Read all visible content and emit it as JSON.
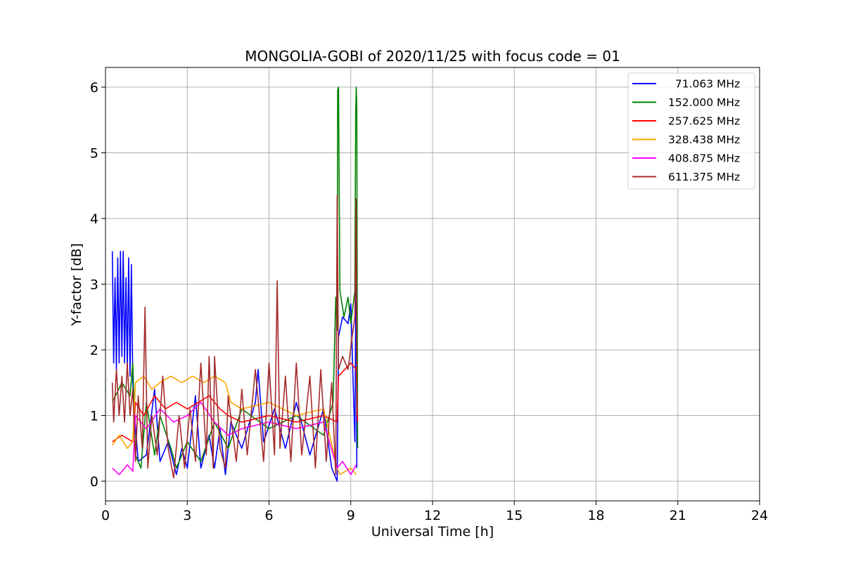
{
  "chart_data": {
    "type": "line",
    "title": "MONGOLIA-GOBI of 2020/11/25 with focus code = 01",
    "xlabel": "Universal Time [h]",
    "ylabel": "Y-factor [dB]",
    "xlim": [
      0,
      24
    ],
    "ylim": [
      -0.3,
      6.3
    ],
    "xticks": [
      0,
      3,
      6,
      9,
      12,
      15,
      18,
      21,
      24
    ],
    "yticks": [
      0,
      1,
      2,
      3,
      4,
      5,
      6
    ],
    "grid": true,
    "legend_position": "top-right",
    "series": [
      {
        "name": "  71.063 MHz",
        "color": "#0000ff",
        "points": [
          [
            0.25,
            3.5
          ],
          [
            0.3,
            1.8
          ],
          [
            0.35,
            3.1
          ],
          [
            0.4,
            1.7
          ],
          [
            0.45,
            3.4
          ],
          [
            0.5,
            1.8
          ],
          [
            0.55,
            3.5
          ],
          [
            0.6,
            1.9
          ],
          [
            0.65,
            3.5
          ],
          [
            0.7,
            1.8
          ],
          [
            0.75,
            3.1
          ],
          [
            0.8,
            1.7
          ],
          [
            0.85,
            3.4
          ],
          [
            0.9,
            1.6
          ],
          [
            0.95,
            3.3
          ],
          [
            1.0,
            1.5
          ],
          [
            1.05,
            1.1
          ],
          [
            1.2,
            0.3
          ],
          [
            1.5,
            0.4
          ],
          [
            1.8,
            1.4
          ],
          [
            2.0,
            0.3
          ],
          [
            2.3,
            0.6
          ],
          [
            2.6,
            0.1
          ],
          [
            2.8,
            0.5
          ],
          [
            3.0,
            0.2
          ],
          [
            3.3,
            1.3
          ],
          [
            3.5,
            0.2
          ],
          [
            3.8,
            0.7
          ],
          [
            4.0,
            0.2
          ],
          [
            4.2,
            0.8
          ],
          [
            4.4,
            0.1
          ],
          [
            4.6,
            0.9
          ],
          [
            5.0,
            0.5
          ],
          [
            5.5,
            1.2
          ],
          [
            5.6,
            1.7
          ],
          [
            5.8,
            0.6
          ],
          [
            6.2,
            1.1
          ],
          [
            6.6,
            0.5
          ],
          [
            7.0,
            1.2
          ],
          [
            7.5,
            0.4
          ],
          [
            8.0,
            1.1
          ],
          [
            8.3,
            0.2
          ],
          [
            8.5,
            0.0
          ],
          [
            8.55,
            2.2
          ],
          [
            8.7,
            2.5
          ],
          [
            8.9,
            2.4
          ],
          [
            9.0,
            2.7
          ],
          [
            9.15,
            0.6
          ],
          [
            9.2,
            4.05
          ],
          [
            9.22,
            0.2
          ]
        ]
      },
      {
        "name": "152.000 MHz",
        "color": "#008000",
        "points": [
          [
            0.25,
            1.2
          ],
          [
            0.6,
            1.5
          ],
          [
            0.9,
            1.3
          ],
          [
            1.0,
            1.8
          ],
          [
            1.1,
            0.4
          ],
          [
            1.3,
            0.2
          ],
          [
            1.5,
            1.2
          ],
          [
            1.8,
            0.4
          ],
          [
            2.0,
            1.0
          ],
          [
            2.4,
            0.5
          ],
          [
            2.6,
            0.2
          ],
          [
            3.0,
            0.6
          ],
          [
            3.5,
            0.3
          ],
          [
            4.0,
            0.9
          ],
          [
            4.5,
            0.5
          ],
          [
            5.0,
            1.1
          ],
          [
            6.0,
            0.8
          ],
          [
            7.0,
            1.0
          ],
          [
            8.0,
            0.7
          ],
          [
            8.35,
            1.2
          ],
          [
            8.45,
            2.8
          ],
          [
            8.5,
            2.3
          ],
          [
            8.52,
            5.95
          ],
          [
            8.55,
            6.0
          ],
          [
            8.6,
            2.9
          ],
          [
            8.75,
            2.5
          ],
          [
            8.9,
            2.8
          ],
          [
            9.0,
            2.4
          ],
          [
            9.15,
            2.9
          ],
          [
            9.18,
            5.6
          ],
          [
            9.2,
            6.0
          ],
          [
            9.22,
            5.7
          ],
          [
            9.25,
            0.5
          ]
        ]
      },
      {
        "name": "257.625 MHz",
        "color": "#ff0000",
        "points": [
          [
            0.25,
            0.6
          ],
          [
            0.6,
            0.7
          ],
          [
            1.0,
            0.6
          ],
          [
            1.1,
            1.2
          ],
          [
            1.4,
            1.0
          ],
          [
            1.8,
            1.3
          ],
          [
            2.2,
            1.1
          ],
          [
            2.6,
            1.2
          ],
          [
            3.0,
            1.1
          ],
          [
            3.4,
            1.2
          ],
          [
            3.8,
            1.3
          ],
          [
            4.2,
            1.1
          ],
          [
            4.5,
            1.0
          ],
          [
            5.0,
            0.9
          ],
          [
            6.0,
            1.0
          ],
          [
            7.0,
            0.9
          ],
          [
            8.0,
            1.0
          ],
          [
            8.5,
            0.9
          ],
          [
            8.55,
            1.6
          ],
          [
            9.0,
            1.8
          ],
          [
            9.2,
            1.7
          ],
          [
            9.25,
            0.9
          ]
        ]
      },
      {
        "name": "328.438 MHz",
        "color": "#ffa500",
        "points": [
          [
            0.25,
            0.55
          ],
          [
            0.5,
            0.7
          ],
          [
            0.8,
            0.5
          ],
          [
            1.0,
            0.6
          ],
          [
            1.1,
            1.5
          ],
          [
            1.4,
            1.6
          ],
          [
            1.7,
            1.4
          ],
          [
            2.0,
            1.5
          ],
          [
            2.4,
            1.6
          ],
          [
            2.8,
            1.5
          ],
          [
            3.2,
            1.6
          ],
          [
            3.6,
            1.5
          ],
          [
            4.0,
            1.6
          ],
          [
            4.4,
            1.5
          ],
          [
            4.6,
            1.2
          ],
          [
            5.0,
            1.1
          ],
          [
            6.0,
            1.2
          ],
          [
            7.0,
            1.0
          ],
          [
            8.0,
            1.1
          ],
          [
            8.5,
            0.2
          ],
          [
            8.6,
            0.1
          ],
          [
            9.0,
            0.2
          ],
          [
            9.2,
            0.1
          ]
        ]
      },
      {
        "name": "408.875 MHz",
        "color": "#ff00ff",
        "points": [
          [
            0.25,
            0.2
          ],
          [
            0.5,
            0.1
          ],
          [
            0.8,
            0.25
          ],
          [
            1.0,
            0.15
          ],
          [
            1.1,
            1.0
          ],
          [
            1.5,
            0.8
          ],
          [
            2.0,
            1.1
          ],
          [
            2.5,
            0.9
          ],
          [
            3.0,
            1.0
          ],
          [
            3.5,
            1.2
          ],
          [
            4.0,
            0.9
          ],
          [
            4.5,
            0.7
          ],
          [
            5.0,
            0.8
          ],
          [
            6.0,
            0.9
          ],
          [
            7.0,
            0.8
          ],
          [
            8.0,
            0.9
          ],
          [
            8.5,
            0.2
          ],
          [
            8.7,
            0.3
          ],
          [
            9.0,
            0.1
          ],
          [
            9.2,
            0.25
          ]
        ]
      },
      {
        "name": "611.375 MHz",
        "color": "#a52a2a",
        "points": [
          [
            0.25,
            1.5
          ],
          [
            0.3,
            0.9
          ],
          [
            0.4,
            1.7
          ],
          [
            0.5,
            1.0
          ],
          [
            0.6,
            1.6
          ],
          [
            0.7,
            0.9
          ],
          [
            0.8,
            1.8
          ],
          [
            0.9,
            1.0
          ],
          [
            1.0,
            1.4
          ],
          [
            1.1,
            0.3
          ],
          [
            1.2,
            1.3
          ],
          [
            1.35,
            0.5
          ],
          [
            1.45,
            2.65
          ],
          [
            1.55,
            0.2
          ],
          [
            1.7,
            1.0
          ],
          [
            1.9,
            0.4
          ],
          [
            2.1,
            1.6
          ],
          [
            2.3,
            0.5
          ],
          [
            2.5,
            0.05
          ],
          [
            2.7,
            1.0
          ],
          [
            2.9,
            0.2
          ],
          [
            3.1,
            1.1
          ],
          [
            3.3,
            0.3
          ],
          [
            3.5,
            1.8
          ],
          [
            3.7,
            0.4
          ],
          [
            3.8,
            1.9
          ],
          [
            3.95,
            0.2
          ],
          [
            4.0,
            1.9
          ],
          [
            4.2,
            0.5
          ],
          [
            4.4,
            0.2
          ],
          [
            4.5,
            1.3
          ],
          [
            4.8,
            0.3
          ],
          [
            5.0,
            1.4
          ],
          [
            5.2,
            0.4
          ],
          [
            5.5,
            1.7
          ],
          [
            5.8,
            0.3
          ],
          [
            6.0,
            1.8
          ],
          [
            6.2,
            0.4
          ],
          [
            6.3,
            3.05
          ],
          [
            6.4,
            0.5
          ],
          [
            6.6,
            1.6
          ],
          [
            6.8,
            0.3
          ],
          [
            7.0,
            1.8
          ],
          [
            7.2,
            0.4
          ],
          [
            7.5,
            1.6
          ],
          [
            7.7,
            0.2
          ],
          [
            7.9,
            1.7
          ],
          [
            8.1,
            0.3
          ],
          [
            8.3,
            1.5
          ],
          [
            8.45,
            0.1
          ],
          [
            8.5,
            4.35
          ],
          [
            8.55,
            1.7
          ],
          [
            8.7,
            1.9
          ],
          [
            8.9,
            1.7
          ],
          [
            9.05,
            2.2
          ],
          [
            9.15,
            2.5
          ],
          [
            9.2,
            4.3
          ],
          [
            9.22,
            1.0
          ]
        ]
      }
    ]
  }
}
